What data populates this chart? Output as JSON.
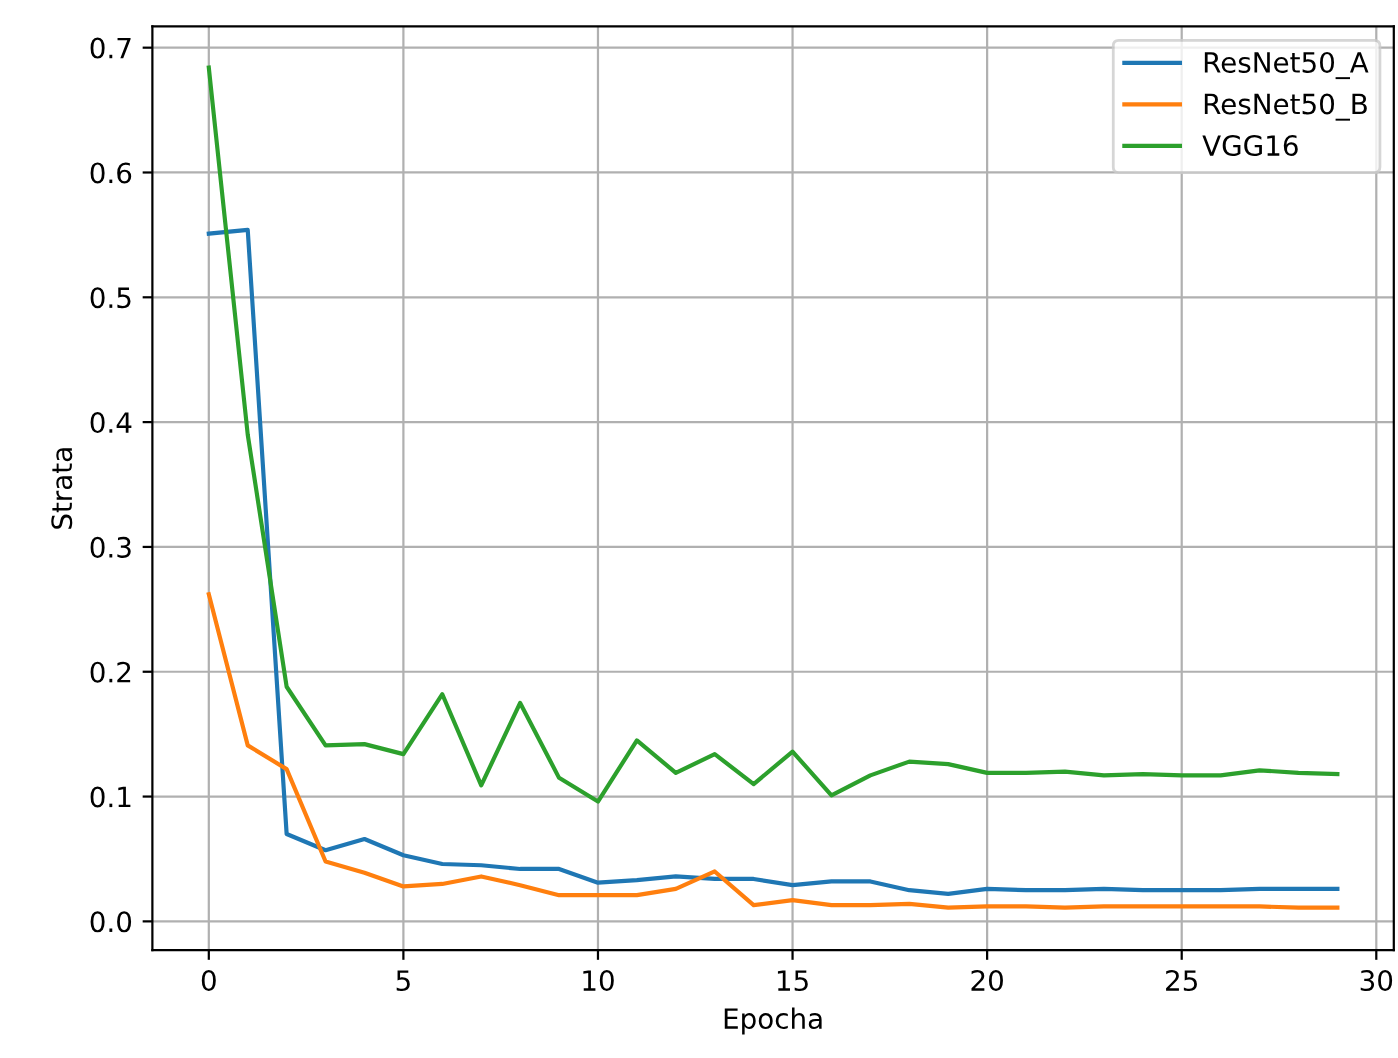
{
  "chart_data": {
    "type": "line",
    "xlabel": "Epocha",
    "ylabel": "Strata",
    "x": [
      0,
      1,
      2,
      3,
      4,
      5,
      6,
      7,
      8,
      9,
      10,
      11,
      12,
      13,
      14,
      15,
      16,
      17,
      18,
      19,
      20,
      21,
      22,
      23,
      24,
      25,
      26,
      27,
      28,
      29
    ],
    "xlim": [
      -1.45,
      30.45
    ],
    "xticks": [
      0,
      5,
      10,
      15,
      20,
      25,
      30
    ],
    "ylim": [
      -0.023,
      0.717
    ],
    "yticks": [
      {
        "value": 0,
        "label": "0.0"
      },
      0.1,
      0.2,
      0.3,
      0.4,
      0.5,
      0.6,
      0.7
    ],
    "grid": true,
    "legend": "top right",
    "line_style": "solid",
    "marker": "none",
    "series": [
      {
        "name": "ResNet50_A",
        "color": "#1f77b4",
        "values": [
          0.551,
          0.554,
          0.07,
          0.057,
          0.066,
          0.053,
          0.046,
          0.045,
          0.042,
          0.042,
          0.031,
          0.033,
          0.036,
          0.034,
          0.034,
          0.029,
          0.032,
          0.032,
          0.025,
          0.022,
          0.026,
          0.025,
          0.025,
          0.026,
          0.025,
          0.025,
          0.025,
          0.026,
          0.026,
          0.026
        ]
      },
      {
        "name": "ResNet50_B",
        "color": "#ff7f0e",
        "values": [
          0.262,
          0.141,
          0.122,
          0.048,
          0.039,
          0.028,
          0.03,
          0.036,
          0.029,
          0.021,
          0.021,
          0.021,
          0.026,
          0.04,
          0.013,
          0.017,
          0.013,
          0.013,
          0.014,
          0.011,
          0.012,
          0.012,
          0.011,
          0.012,
          0.012,
          0.012,
          0.012,
          0.012,
          0.011,
          0.011
        ]
      },
      {
        "name": "VGG16",
        "color": "#2ca02c",
        "values": [
          0.684,
          0.39,
          0.188,
          0.141,
          0.142,
          0.134,
          0.182,
          0.109,
          0.175,
          0.115,
          0.096,
          0.145,
          0.119,
          0.134,
          0.11,
          0.136,
          0.101,
          0.117,
          0.128,
          0.126,
          0.119,
          0.119,
          0.12,
          0.117,
          0.118,
          0.117,
          0.117,
          0.121,
          0.119,
          0.118
        ]
      }
    ]
  }
}
